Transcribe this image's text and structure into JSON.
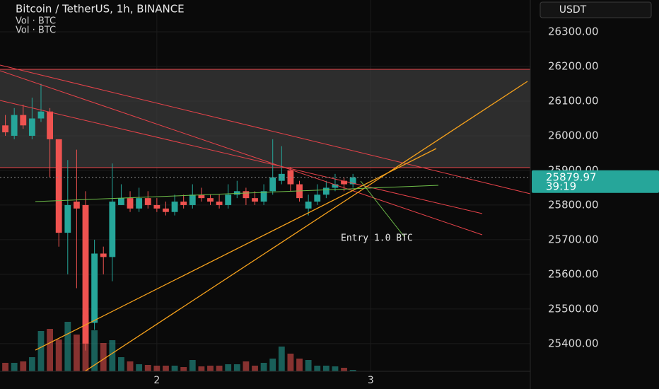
{
  "header": {
    "title": "Bitcoin / TetherUS, 1h, BINANCE",
    "indicators": [
      "Vol · BTC",
      "Vol · BTC"
    ],
    "currency": "USDT"
  },
  "chart_data": {
    "type": "candlestick",
    "x": [
      0,
      1,
      2,
      3,
      4,
      5,
      6,
      7,
      8,
      9,
      10,
      11,
      12,
      13,
      14,
      15,
      16,
      17,
      18,
      19,
      20,
      21,
      22,
      23,
      24,
      25,
      26,
      27,
      28,
      29,
      30,
      31,
      32,
      33,
      34,
      35,
      36,
      37,
      38,
      39
    ],
    "open": [
      26030,
      26000,
      26060,
      26000,
      26050,
      26070,
      25990,
      25720,
      25810,
      25800,
      25460,
      25660,
      25650,
      25800,
      25820,
      25790,
      25820,
      25800,
      25790,
      25780,
      25810,
      25800,
      25830,
      25820,
      25810,
      25800,
      25830,
      25840,
      25820,
      25810,
      25840,
      25870,
      25900,
      25860,
      25790,
      25810,
      25830,
      25850,
      25870,
      25860
    ],
    "high": [
      26060,
      26080,
      26090,
      26110,
      26150,
      26080,
      25990,
      25930,
      25960,
      25840,
      25700,
      25680,
      25920,
      25860,
      25840,
      25850,
      25840,
      25820,
      25810,
      25830,
      25830,
      25860,
      25850,
      25830,
      25830,
      25860,
      25870,
      25850,
      25840,
      25860,
      25990,
      25970,
      25910,
      25870,
      25830,
      25860,
      25870,
      25890,
      25880,
      25890
    ],
    "low": [
      26000,
      25990,
      26020,
      25990,
      26040,
      25880,
      25680,
      25600,
      25560,
      25380,
      25440,
      25600,
      25580,
      25800,
      25780,
      25780,
      25790,
      25780,
      25770,
      25770,
      25790,
      25790,
      25810,
      25800,
      25790,
      25790,
      25820,
      25800,
      25800,
      25800,
      25830,
      25860,
      25840,
      25810,
      25770,
      25800,
      25820,
      25840,
      25840,
      25850
    ],
    "close": [
      26010,
      26060,
      26030,
      26050,
      26070,
      25990,
      25720,
      25800,
      25790,
      25400,
      25660,
      25650,
      25810,
      25820,
      25790,
      25820,
      25800,
      25790,
      25780,
      25810,
      25800,
      25830,
      25820,
      25810,
      25800,
      25830,
      25840,
      25820,
      25810,
      25840,
      25880,
      25890,
      25860,
      25820,
      25810,
      25830,
      25850,
      25860,
      25860,
      25880
    ],
    "volume": [
      120,
      120,
      140,
      200,
      570,
      600,
      450,
      700,
      520,
      800,
      580,
      400,
      440,
      200,
      140,
      100,
      90,
      80,
      80,
      80,
      60,
      160,
      70,
      80,
      80,
      100,
      100,
      140,
      80,
      120,
      180,
      350,
      250,
      180,
      160,
      80,
      80,
      70,
      50,
      20
    ],
    "up_color": "#26a69a",
    "down_color": "#ef5350",
    "xlim": [
      -0.6,
      58.9
    ],
    "xticks": [
      {
        "value": 17,
        "label": "2"
      },
      {
        "value": 41,
        "label": "3"
      }
    ],
    "ylim": [
      25320,
      26392
    ],
    "yticks": [
      {
        "value": 25400,
        "label": "25400.00"
      },
      {
        "value": 25500,
        "label": "25500.00"
      },
      {
        "value": 25600,
        "label": "25600.00"
      },
      {
        "value": 25700,
        "label": "25700.00"
      },
      {
        "value": 25800,
        "label": "25800.00"
      },
      {
        "value": 25900,
        "label": "25900.00"
      },
      {
        "value": 26000,
        "label": "26000.00"
      },
      {
        "value": 26100,
        "label": "26100.00"
      },
      {
        "value": 26200,
        "label": "26200.00"
      },
      {
        "value": 26300,
        "label": "26300.00"
      }
    ],
    "grid": true,
    "last_price": 25879.97,
    "countdown": "39:19",
    "annotation": "Entry 1.0 BTC"
  }
}
